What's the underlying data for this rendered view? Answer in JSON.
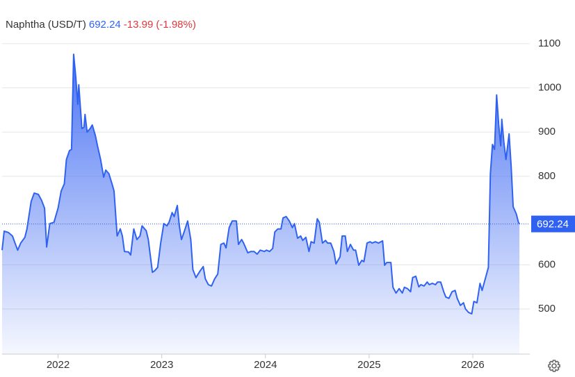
{
  "chart_data": {
    "type": "line",
    "title": "Naphtha (USD/T)",
    "change": -13.99,
    "change_percent": "(-1.98%)",
    "x": [
      2021.46,
      2021.48,
      2021.52,
      2021.56,
      2021.58,
      2021.61,
      2021.64,
      2021.68,
      2021.7,
      2021.74,
      2021.77,
      2021.81,
      2021.84,
      2021.87,
      2021.89,
      2021.92,
      2021.96,
      2022.0,
      2022.03,
      2022.06,
      2022.08,
      2022.11,
      2022.13,
      2022.15,
      2022.17,
      2022.19,
      2022.2,
      2022.23,
      2022.25,
      2022.26,
      2022.28,
      2022.31,
      2022.33,
      2022.36,
      2022.38,
      2022.41,
      2022.44,
      2022.46,
      2022.49,
      2022.52,
      2022.54,
      2022.57,
      2022.6,
      2022.62,
      2022.64,
      2022.68,
      2022.7,
      2022.73,
      2022.76,
      2022.79,
      2022.81,
      2022.85,
      2022.87,
      2022.91,
      2022.93,
      2022.96,
      2022.99,
      2023.02,
      2023.05,
      2023.07,
      2023.1,
      2023.12,
      2023.15,
      2023.17,
      2023.19,
      2023.22,
      2023.25,
      2023.28,
      2023.3,
      2023.33,
      2023.37,
      2023.4,
      2023.42,
      2023.45,
      2023.48,
      2023.51,
      2023.54,
      2023.57,
      2023.6,
      2023.62,
      2023.65,
      2023.68,
      2023.72,
      2023.74,
      2023.77,
      2023.79,
      2023.83,
      2023.86,
      2023.89,
      2023.92,
      2023.95,
      2023.99,
      2024.01,
      2024.04,
      2024.07,
      2024.09,
      2024.12,
      2024.15,
      2024.17,
      2024.2,
      2024.23,
      2024.26,
      2024.28,
      2024.31,
      2024.34,
      2024.36,
      2024.39,
      2024.42,
      2024.44,
      2024.47,
      2024.5,
      2024.52,
      2024.55,
      2024.58,
      2024.6,
      2024.63,
      2024.66,
      2024.68,
      2024.72,
      2024.74,
      2024.77,
      2024.79,
      2024.82,
      2024.85,
      2024.87,
      2024.9,
      2024.93,
      2024.95,
      2024.98,
      2025.01,
      2025.03,
      2025.06,
      2025.09,
      2025.13,
      2025.15,
      2025.17,
      2025.21,
      2025.23,
      2025.26,
      2025.29,
      2025.32,
      2025.34,
      2025.37,
      2025.4,
      2025.42,
      2025.45,
      2025.48,
      2025.5,
      2025.53,
      2025.56,
      2025.58,
      2025.61,
      2025.64,
      2025.66,
      2025.69,
      2025.72,
      2025.74,
      2025.77,
      2025.8,
      2025.83,
      2025.85,
      2025.88,
      2025.91,
      2025.93,
      2025.96,
      2025.99,
      2026.01,
      2026.04,
      2026.07,
      2026.09,
      2026.12,
      2026.15,
      2026.16,
      2026.17,
      2026.19,
      2026.21,
      2026.23,
      2026.25,
      2026.27,
      2026.28,
      2026.3,
      2026.32,
      2026.35,
      2026.37,
      2026.39,
      2026.42,
      2026.44,
      2026.45
    ],
    "series": [
      {
        "name": "Naphtha",
        "color": "#2f62f0",
        "values": [
          633,
          676,
          673,
          665,
          652,
          633,
          649,
          662,
          681,
          743,
          762,
          759,
          746,
          728,
          640,
          693,
          696,
          728,
          767,
          783,
          838,
          858,
          861,
          1076,
          1026,
          963,
          1007,
          908,
          911,
          940,
          900,
          908,
          916,
          892,
          869,
          838,
          798,
          814,
          806,
          783,
          767,
          665,
          681,
          665,
          630,
          629,
          622,
          681,
          657,
          665,
          688,
          677,
          657,
          583,
          586,
          594,
          649,
          693,
          688,
          696,
          718,
          709,
          734,
          687,
          657,
          677,
          699,
          657,
          589,
          571,
          586,
          596,
          568,
          555,
          552,
          568,
          579,
          646,
          649,
          638,
          684,
          699,
          699,
          646,
          657,
          649,
          627,
          630,
          630,
          624,
          633,
          630,
          633,
          630,
          637,
          674,
          681,
          681,
          706,
          709,
          699,
          684,
          693,
          660,
          665,
          655,
          662,
          630,
          652,
          649,
          704,
          696,
          649,
          655,
          649,
          649,
          630,
          602,
          618,
          665,
          665,
          630,
          646,
          633,
          633,
          599,
          610,
          607,
          649,
          652,
          649,
          652,
          649,
          654,
          599,
          605,
          605,
          549,
          536,
          546,
          536,
          549,
          546,
          539,
          571,
          574,
          550,
          555,
          552,
          561,
          555,
          558,
          555,
          561,
          561,
          539,
          527,
          524,
          539,
          542,
          524,
          508,
          514,
          500,
          492,
          489,
          517,
          514,
          558,
          542,
          568,
          594,
          696,
          806,
          872,
          861,
          984,
          916,
          869,
          929,
          877,
          838,
          896,
          822,
          731,
          715,
          696,
          692.24
        ]
      }
    ],
    "xlim": [
      2021.46,
      2026.55
    ],
    "xticks": [
      2022,
      2023,
      2024,
      2025,
      2026
    ],
    "ylim": [
      398,
      1128
    ],
    "yticks": [
      500,
      600,
      800,
      900,
      1000,
      1100
    ],
    "grid": true
  }
}
